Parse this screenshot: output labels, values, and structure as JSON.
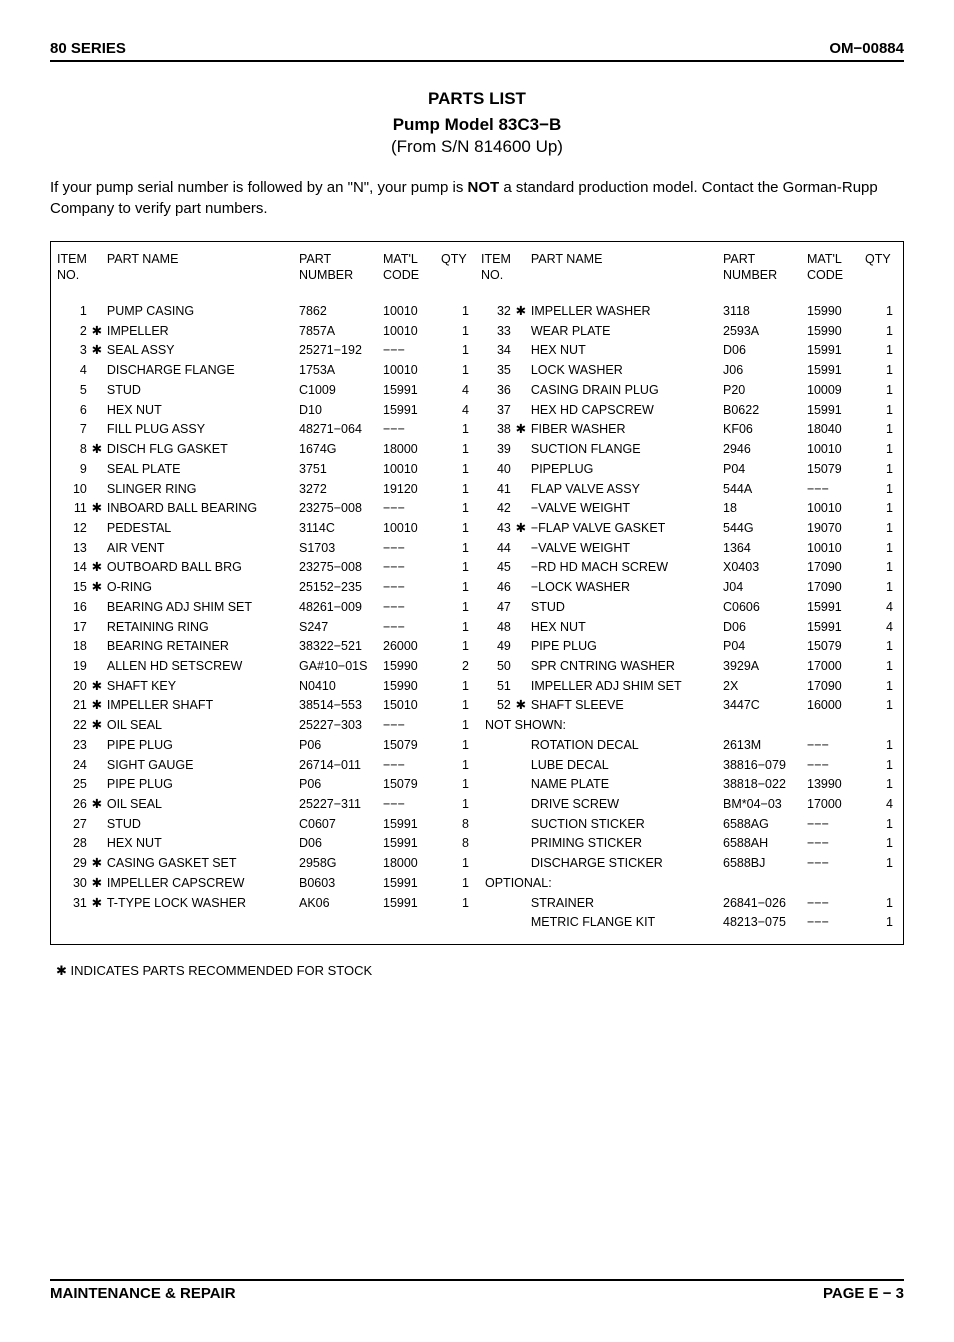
{
  "header": {
    "left": "80 SERIES",
    "right": "OM−00884"
  },
  "title": {
    "line1": "PARTS LIST",
    "line2": "Pump Model 83C3−B",
    "line3": "(From S/N 814600 Up)"
  },
  "intro": {
    "pre": "If your pump serial number is followed by an \"N\", your pump is ",
    "bold": "NOT",
    "post": " a standard production model. Contact the Gorman-Rupp Company to verify part numbers."
  },
  "columns": {
    "item": "ITEM NO.",
    "name": "PART NAME",
    "part": "PART NUMBER",
    "matl": "MAT'L CODE",
    "qty": "QTY"
  },
  "leftRows": [
    {
      "no": "1",
      "star": "",
      "name": "PUMP CASING",
      "part": "7862",
      "matl": "10010",
      "qty": "1"
    },
    {
      "no": "2",
      "star": "✱",
      "name": "IMPELLER",
      "part": "7857A",
      "matl": "10010",
      "qty": "1"
    },
    {
      "no": "3",
      "star": "✱",
      "name": "SEAL ASSY",
      "part": "25271−192",
      "matl": "−−−",
      "qty": "1"
    },
    {
      "no": "4",
      "star": "",
      "name": "DISCHARGE FLANGE",
      "part": "1753A",
      "matl": "10010",
      "qty": "1"
    },
    {
      "no": "5",
      "star": "",
      "name": "STUD",
      "part": "C1009",
      "matl": "15991",
      "qty": "4"
    },
    {
      "no": "6",
      "star": "",
      "name": "HEX NUT",
      "part": "D10",
      "matl": "15991",
      "qty": "4"
    },
    {
      "no": "7",
      "star": "",
      "name": "FILL PLUG ASSY",
      "part": "48271−064",
      "matl": "−−−",
      "qty": "1"
    },
    {
      "no": "8",
      "star": "✱",
      "name": "DISCH FLG GASKET",
      "part": "1674G",
      "matl": "18000",
      "qty": "1"
    },
    {
      "no": "9",
      "star": "",
      "name": "SEAL PLATE",
      "part": "3751",
      "matl": "10010",
      "qty": "1"
    },
    {
      "no": "10",
      "star": "",
      "name": "SLINGER RING",
      "part": "3272",
      "matl": "19120",
      "qty": "1"
    },
    {
      "no": "11",
      "star": "✱",
      "name": "INBOARD BALL BEARING",
      "part": "23275−008",
      "matl": "−−−",
      "qty": "1"
    },
    {
      "no": "12",
      "star": "",
      "name": "PEDESTAL",
      "part": "3114C",
      "matl": "10010",
      "qty": "1"
    },
    {
      "no": "13",
      "star": "",
      "name": "AIR VENT",
      "part": "S1703",
      "matl": "−−−",
      "qty": "1"
    },
    {
      "no": "14",
      "star": "✱",
      "name": "OUTBOARD BALL BRG",
      "part": "23275−008",
      "matl": "−−−",
      "qty": "1"
    },
    {
      "no": "15",
      "star": "✱",
      "name": "O-RING",
      "part": "25152−235",
      "matl": "−−−",
      "qty": "1"
    },
    {
      "no": "16",
      "star": "",
      "name": "BEARING ADJ SHIM SET",
      "part": "48261−009",
      "matl": "−−−",
      "qty": "1"
    },
    {
      "no": "17",
      "star": "",
      "name": "RETAINING RING",
      "part": "S247",
      "matl": "−−−",
      "qty": "1"
    },
    {
      "no": "18",
      "star": "",
      "name": "BEARING RETAINER",
      "part": "38322−521",
      "matl": "26000",
      "qty": "1"
    },
    {
      "no": "19",
      "star": "",
      "name": "ALLEN HD SETSCREW",
      "part": "GA#10−01S",
      "matl": "15990",
      "qty": "2"
    },
    {
      "no": "20",
      "star": "✱",
      "name": "SHAFT KEY",
      "part": "N0410",
      "matl": "15990",
      "qty": "1"
    },
    {
      "no": "21",
      "star": "✱",
      "name": "IMPELLER SHAFT",
      "part": "38514−553",
      "matl": "15010",
      "qty": "1"
    },
    {
      "no": "22",
      "star": "✱",
      "name": "OIL SEAL",
      "part": "25227−303",
      "matl": "−−−",
      "qty": "1"
    },
    {
      "no": "23",
      "star": "",
      "name": "PIPE PLUG",
      "part": "P06",
      "matl": "15079",
      "qty": "1"
    },
    {
      "no": "24",
      "star": "",
      "name": "SIGHT GAUGE",
      "part": "26714−011",
      "matl": "−−−",
      "qty": "1"
    },
    {
      "no": "25",
      "star": "",
      "name": "PIPE PLUG",
      "part": "P06",
      "matl": "15079",
      "qty": "1"
    },
    {
      "no": "26",
      "star": "✱",
      "name": "OIL SEAL",
      "part": "25227−311",
      "matl": "−−−",
      "qty": "1"
    },
    {
      "no": "27",
      "star": "",
      "name": "STUD",
      "part": "C0607",
      "matl": "15991",
      "qty": "8"
    },
    {
      "no": "28",
      "star": "",
      "name": "HEX NUT",
      "part": "D06",
      "matl": "15991",
      "qty": "8"
    },
    {
      "no": "29",
      "star": "✱",
      "name": "CASING GASKET SET",
      "part": "2958G",
      "matl": "18000",
      "qty": "1"
    },
    {
      "no": "30",
      "star": "✱",
      "name": "IMPELLER  CAPSCREW",
      "part": "B0603",
      "matl": "15991",
      "qty": "1"
    },
    {
      "no": "31",
      "star": "✱",
      "name": "T-TYPE LOCK WASHER",
      "part": "AK06",
      "matl": "15991",
      "qty": "1"
    }
  ],
  "rightRows": [
    {
      "no": "32",
      "star": "✱",
      "name": "IMPELLER WASHER",
      "part": "3118",
      "matl": "15990",
      "qty": "1"
    },
    {
      "no": "33",
      "star": "",
      "name": "WEAR PLATE",
      "part": "2593A",
      "matl": "15990",
      "qty": "1"
    },
    {
      "no": "34",
      "star": "",
      "name": "HEX NUT",
      "part": "D06",
      "matl": "15991",
      "qty": "1"
    },
    {
      "no": "35",
      "star": "",
      "name": "LOCK WASHER",
      "part": "J06",
      "matl": "15991",
      "qty": "1"
    },
    {
      "no": "36",
      "star": "",
      "name": "CASING DRAIN  PLUG",
      "part": "P20",
      "matl": "10009",
      "qty": "1"
    },
    {
      "no": "37",
      "star": "",
      "name": "HEX HD CAPSCREW",
      "part": "B0622",
      "matl": "15991",
      "qty": "1"
    },
    {
      "no": "38",
      "star": "✱",
      "name": "FIBER WASHER",
      "part": "KF06",
      "matl": "18040",
      "qty": "1"
    },
    {
      "no": "39",
      "star": "",
      "name": "SUCTION FLANGE",
      "part": "2946",
      "matl": "10010",
      "qty": "1"
    },
    {
      "no": "40",
      "star": "",
      "name": "PIPEPLUG",
      "part": "P04",
      "matl": "15079",
      "qty": "1"
    },
    {
      "no": "41",
      "star": "",
      "name": "FLAP VALVE ASSY",
      "part": "544A",
      "matl": "−−−",
      "qty": "1"
    },
    {
      "no": "42",
      "star": "",
      "name": "−VALVE WEIGHT",
      "part": "18",
      "matl": "10010",
      "qty": "1"
    },
    {
      "no": "43",
      "star": "✱",
      "name": "−FLAP VALVE GASKET",
      "part": "544G",
      "matl": "19070",
      "qty": "1"
    },
    {
      "no": "44",
      "star": "",
      "name": "−VALVE WEIGHT",
      "part": "1364",
      "matl": "10010",
      "qty": "1"
    },
    {
      "no": "45",
      "star": "",
      "name": "−RD HD MACH SCREW",
      "part": "X0403",
      "matl": "17090",
      "qty": "1"
    },
    {
      "no": "46",
      "star": "",
      "name": "−LOCK WASHER",
      "part": "J04",
      "matl": "17090",
      "qty": "1"
    },
    {
      "no": "47",
      "star": "",
      "name": "STUD",
      "part": "C0606",
      "matl": "15991",
      "qty": "4"
    },
    {
      "no": "48",
      "star": "",
      "name": "HEX NUT",
      "part": "D06",
      "matl": "15991",
      "qty": "4"
    },
    {
      "no": "49",
      "star": "",
      "name": "PIPE PLUG",
      "part": "P04",
      "matl": "15079",
      "qty": "1"
    },
    {
      "no": "50",
      "star": "",
      "name": "SPR CNTRING WASHER",
      "part": "3929A",
      "matl": "17000",
      "qty": "1"
    },
    {
      "no": "51",
      "star": "",
      "name": "IMPELLER ADJ SHIM SET",
      "part": "2X",
      "matl": "17090",
      "qty": "1"
    },
    {
      "no": "52",
      "star": "✱",
      "name": "SHAFT SLEEVE",
      "part": "3447C",
      "matl": "16000",
      "qty": "1"
    },
    {
      "section": "NOT SHOWN:"
    },
    {
      "no": "",
      "star": "",
      "name": "ROTATION DECAL",
      "part": "2613M",
      "matl": "−−−",
      "qty": "1"
    },
    {
      "no": "",
      "star": "",
      "name": "LUBE DECAL",
      "part": "38816−079",
      "matl": "−−−",
      "qty": "1"
    },
    {
      "no": "",
      "star": "",
      "name": "NAME PLATE",
      "part": "38818−022",
      "matl": "13990",
      "qty": "1"
    },
    {
      "no": "",
      "star": "",
      "name": "DRIVE SCREW",
      "part": "BM*04−03",
      "matl": "17000",
      "qty": "4"
    },
    {
      "no": "",
      "star": "",
      "name": "SUCTION STICKER",
      "part": "6588AG",
      "matl": "−−−",
      "qty": "1"
    },
    {
      "no": "",
      "star": "",
      "name": "PRIMING STICKER",
      "part": "6588AH",
      "matl": "−−−",
      "qty": "1"
    },
    {
      "no": "",
      "star": "",
      "name": "DISCHARGE STICKER",
      "part": "6588BJ",
      "matl": "−−−",
      "qty": "1"
    },
    {
      "section": "OPTIONAL:"
    },
    {
      "no": "",
      "star": "",
      "name": "STRAINER",
      "part": "26841−026",
      "matl": "−−−",
      "qty": "1"
    },
    {
      "no": "",
      "star": "",
      "name": "METRIC FLANGE KIT",
      "part": "48213−075",
      "matl": "−−−",
      "qty": "1"
    }
  ],
  "footnote": "✱ INDICATES PARTS RECOMMENDED FOR STOCK",
  "footer": {
    "left": "MAINTENANCE & REPAIR",
    "right": "PAGE E − 3"
  }
}
